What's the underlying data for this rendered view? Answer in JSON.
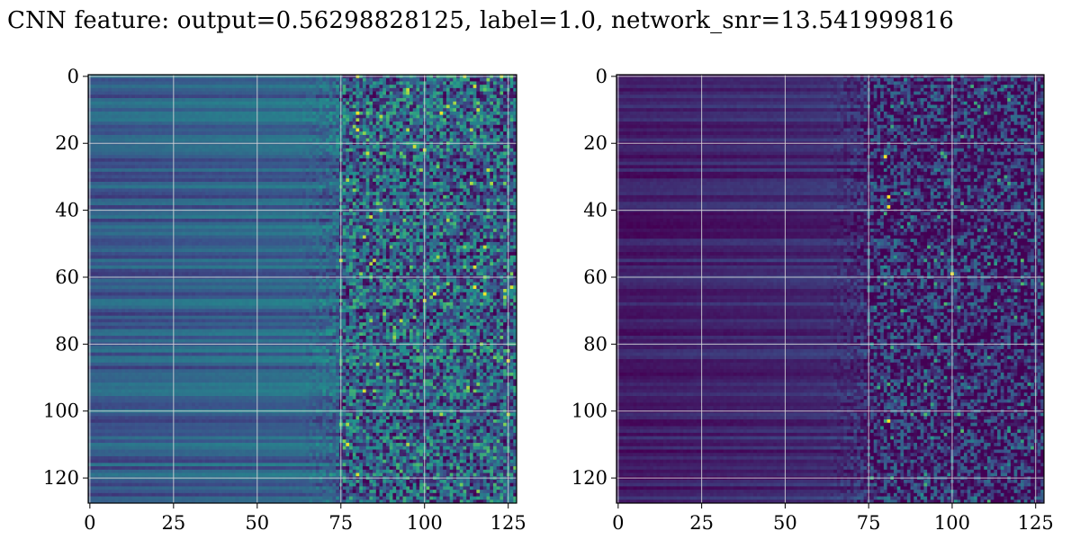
{
  "title": "CNN feature: output=0.56298828125, label=1.0, network_snr=13.541999816",
  "chart_data": [
    {
      "type": "heatmap",
      "title": "",
      "xlabel": "",
      "ylabel": "",
      "x_range": [
        0,
        127
      ],
      "y_range": [
        0,
        127
      ],
      "y_inverted": true,
      "x_ticks": [
        0,
        25,
        50,
        75,
        100,
        125
      ],
      "y_ticks": [
        0,
        20,
        40,
        60,
        80,
        100,
        120
      ],
      "grid": true,
      "colormap": "viridis",
      "background_level": 0.28,
      "noise_onset_column": 75,
      "hot_spots": [
        [
          65,
          103
        ],
        [
          65,
          118
        ],
        [
          16,
          80
        ],
        [
          11,
          80
        ],
        [
          63,
          115
        ]
      ]
    },
    {
      "type": "heatmap",
      "title": "",
      "xlabel": "",
      "ylabel": "",
      "x_range": [
        0,
        127
      ],
      "y_range": [
        0,
        127
      ],
      "y_inverted": true,
      "x_ticks": [
        0,
        25,
        50,
        75,
        100,
        125
      ],
      "y_ticks": [
        0,
        20,
        40,
        60,
        80,
        100,
        120
      ],
      "grid": true,
      "colormap": "viridis",
      "background_level": 0.08,
      "noise_onset_column": 75,
      "hot_spots": [
        [
          36,
          81
        ],
        [
          103,
          81
        ],
        [
          39,
          81
        ],
        [
          24,
          80
        ],
        [
          59,
          100
        ]
      ]
    }
  ],
  "colors": {
    "viridis_low": "#440154",
    "viridis_mid": "#21918c",
    "viridis_high": "#fde725",
    "grid": "#d9d9d9"
  }
}
